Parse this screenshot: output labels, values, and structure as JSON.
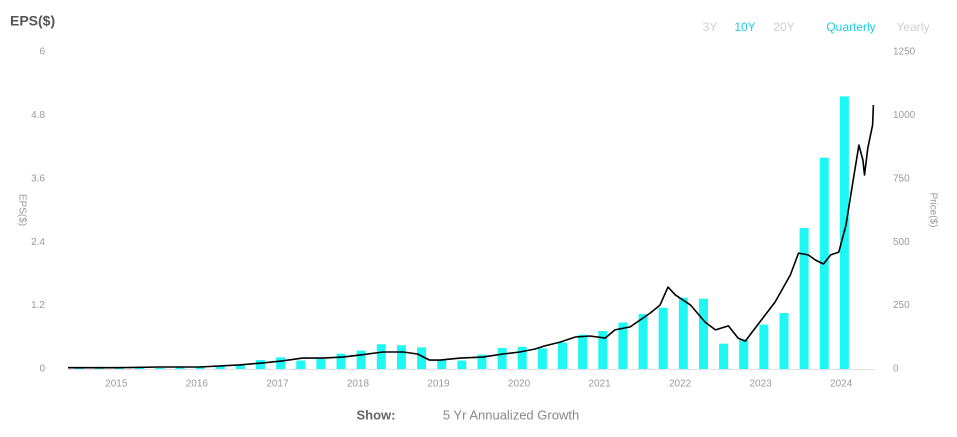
{
  "header": {
    "title": "EPS($)",
    "ranges": [
      "3Y",
      "10Y",
      "20Y"
    ],
    "active_range": 1,
    "periods": [
      "Quarterly",
      "Yearly"
    ],
    "active_period": 0
  },
  "chart_data": {
    "type": "bar",
    "ylabel": "EPS($)",
    "y2label": "Price($)",
    "xlim": [
      2014.4,
      2024.42
    ],
    "xticks": [
      2015,
      2016,
      2017,
      2018,
      2019,
      2020,
      2021,
      2022,
      2023,
      2024
    ],
    "ylim": [
      0,
      6
    ],
    "yticks": [
      0,
      1.2,
      2.4,
      3.6,
      4.8,
      6
    ],
    "y2lim": [
      0,
      1250
    ],
    "y2ticks": [
      0,
      250,
      500,
      750,
      1000,
      1250
    ],
    "grid": false,
    "series": [
      {
        "type": "bar",
        "color": "#1ef8f4",
        "x": [
          2014.54,
          2014.79,
          2015.04,
          2015.29,
          2015.54,
          2015.79,
          2016.04,
          2016.29,
          2016.54,
          2016.79,
          2017.04,
          2017.29,
          2017.54,
          2017.79,
          2018.04,
          2018.29,
          2018.54,
          2018.79,
          2019.04,
          2019.29,
          2019.54,
          2019.79,
          2020.04,
          2020.29,
          2020.54,
          2020.79,
          2021.04,
          2021.29,
          2021.54,
          2021.79,
          2022.04,
          2022.29,
          2022.54,
          2022.79,
          2023.04,
          2023.29,
          2023.54,
          2023.79,
          2024.04
        ],
        "values": [
          0.03,
          0.04,
          0.04,
          0.03,
          0.02,
          0.05,
          0.04,
          0.05,
          0.07,
          0.17,
          0.22,
          0.16,
          0.19,
          0.29,
          0.35,
          0.47,
          0.45,
          0.41,
          0.17,
          0.16,
          0.27,
          0.4,
          0.42,
          0.39,
          0.5,
          0.65,
          0.72,
          0.88,
          1.04,
          1.16,
          1.35,
          1.33,
          0.48,
          0.56,
          0.84,
          1.06,
          2.67,
          4.0,
          5.16
        ]
      },
      {
        "type": "line",
        "axis": "y2",
        "color": "#000000",
        "x": [
          2014.4,
          2015.0,
          2015.53,
          2016.03,
          2016.53,
          2016.82,
          2017.06,
          2017.31,
          2017.56,
          2017.81,
          2018.02,
          2018.31,
          2018.56,
          2018.74,
          2018.89,
          2019.02,
          2019.27,
          2019.55,
          2019.8,
          2020.01,
          2020.2,
          2020.32,
          2020.51,
          2020.7,
          2020.88,
          2021.07,
          2021.19,
          2021.38,
          2021.63,
          2021.75,
          2021.85,
          2021.94,
          2022.13,
          2022.31,
          2022.44,
          2022.6,
          2022.72,
          2022.81,
          2022.97,
          2023.18,
          2023.37,
          2023.47,
          2023.59,
          2023.68,
          2023.78,
          2023.87,
          2023.97,
          2024.06,
          2024.14,
          2024.22,
          2024.27,
          2024.29,
          2024.33,
          2024.39,
          2024.4
        ],
        "values": [
          5,
          5,
          8,
          8,
          16,
          24,
          32,
          43,
          43,
          47,
          55,
          67,
          67,
          59,
          35,
          35,
          43,
          47,
          59,
          67,
          79,
          91,
          106,
          126,
          130,
          122,
          154,
          166,
          221,
          252,
          323,
          292,
          252,
          185,
          154,
          170,
          122,
          110,
          177,
          264,
          371,
          457,
          450,
          430,
          414,
          450,
          461,
          568,
          726,
          883,
          824,
          765,
          871,
          962,
          1041
        ]
      }
    ]
  },
  "footer": {
    "show_label": "Show:",
    "option": "5 Yr Annualized Growth"
  }
}
